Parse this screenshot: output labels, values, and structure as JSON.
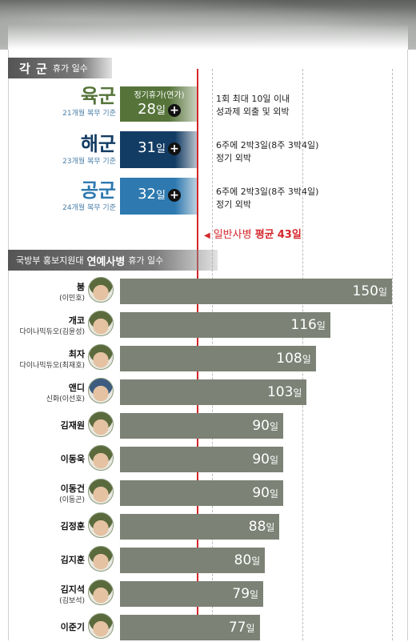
{
  "section1": {
    "title": "각 군",
    "subtitle": "휴가 일수"
  },
  "branches": [
    {
      "name": "육군",
      "sub": "21개월 복무 기준",
      "box_label": "정기휴가(연가)",
      "days": 28,
      "unit": "일",
      "color": "#56743a",
      "desc": [
        "1회 최대 10일 이내",
        "성과제 외출 및 외박"
      ]
    },
    {
      "name": "해군",
      "sub": "23개월 복무 기준",
      "box_label": "",
      "days": 31,
      "unit": "일",
      "color": "#133c64",
      "desc": [
        "6주에 2박3일(8주 3박4일)",
        "정기 외박"
      ]
    },
    {
      "name": "공군",
      "sub": "24개월 복무 기준",
      "box_label": "",
      "days": 32,
      "unit": "일",
      "color": "#2d79b0",
      "desc": [
        "6주에 2박3일(8주 3박4일)",
        "정기 외박"
      ]
    }
  ],
  "average": {
    "prefix": "일반사병",
    "label": "평균",
    "value": "43일",
    "days": 43,
    "color": "#d4262a"
  },
  "section2": {
    "prefix": "국방부 홍보지원대",
    "title": "연예사병",
    "suffix": "휴가 일수"
  },
  "chart_data": {
    "type": "bar",
    "orientation": "horizontal",
    "unit": "일",
    "categories": [
      "붐",
      "개코",
      "최자",
      "앤디",
      "김재원",
      "이동욱",
      "이동건",
      "김정훈",
      "김지훈",
      "김지석",
      "이준기"
    ],
    "category_notes": [
      "(이민호)",
      "다이나믹듀오(김윤성)",
      "다이나믹듀오(최재호)",
      "신화(이선호)",
      "",
      "",
      "(이동곤)",
      "",
      "",
      "(김보석)",
      ""
    ],
    "values": [
      150,
      116,
      108,
      103,
      90,
      90,
      90,
      88,
      80,
      79,
      77
    ],
    "value_labels": [
      "150",
      "116",
      "108",
      "103",
      "90",
      "90",
      "90",
      "88",
      "80",
      "79",
      "77"
    ],
    "reference_line": 43,
    "xlim": [
      0,
      150
    ],
    "color": "#7c8275"
  }
}
